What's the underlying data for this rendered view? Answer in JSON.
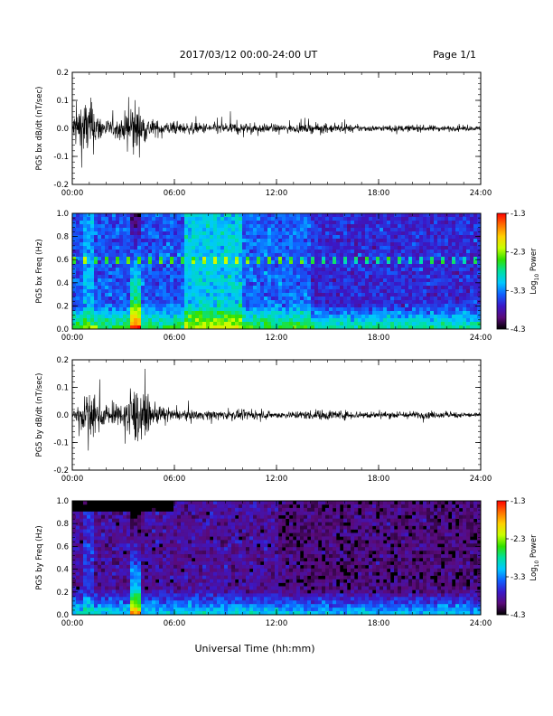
{
  "header": {
    "title": "2017/03/12  00:00-24:00 UT",
    "page": "Page 1/1"
  },
  "footer": {
    "xlabel": "Universal Time (hh:mm)"
  },
  "colorbar": {
    "label_main": "Log",
    "label_sub": "10",
    "label_end": " Power",
    "ticks": [
      "-1.3",
      "-2.3",
      "-3.3",
      "-4.3"
    ],
    "colors": [
      "#000000",
      "#5a0a7a",
      "#3a18c8",
      "#1060ff",
      "#00c8ff",
      "#00e0a0",
      "#30e000",
      "#c8ff00",
      "#ffd000",
      "#ff7000",
      "#ff0000"
    ]
  },
  "chart_data": [
    {
      "type": "line",
      "title": "",
      "ylabel": "PG5 bx dB/dt (nT/sec)",
      "xlabel": "",
      "xlim": [
        "00:00",
        "24:00"
      ],
      "ylim": [
        -0.2,
        0.2
      ],
      "xticks": [
        "00:00",
        "06:00",
        "12:00",
        "18:00",
        "24:00"
      ],
      "yticks": [
        "0.2",
        "0.1",
        "0.0",
        "-0.1",
        "-0.2"
      ],
      "series_color": "#000000",
      "envelope": {
        "x_hours": [
          0.0,
          0.5,
          1.0,
          1.5,
          2.0,
          2.5,
          3.0,
          3.4,
          3.7,
          4.0,
          4.5,
          5.0,
          6.0,
          7.0,
          8.0,
          9.0,
          10.0,
          11.0,
          12.0,
          13.0,
          14.0,
          15.0,
          16.0,
          17.0,
          18.0,
          19.0,
          20.0,
          21.0,
          22.0,
          23.0,
          24.0
        ],
        "amplitude": [
          0.08,
          0.2,
          0.2,
          0.1,
          0.06,
          0.05,
          0.07,
          0.2,
          0.2,
          0.12,
          0.07,
          0.05,
          0.04,
          0.035,
          0.035,
          0.04,
          0.035,
          0.03,
          0.025,
          0.025,
          0.03,
          0.03,
          0.025,
          0.022,
          0.018,
          0.02,
          0.022,
          0.02,
          0.018,
          0.016,
          0.015
        ]
      }
    },
    {
      "type": "heatmap",
      "title": "",
      "ylabel": "PG5 bx Freq (Hz)",
      "xlabel": "",
      "xlim": [
        "00:00",
        "24:00"
      ],
      "ylim": [
        0.0,
        1.0
      ],
      "xticks": [
        "00:00",
        "06:00",
        "12:00",
        "18:00",
        "24:00"
      ],
      "yticks": [
        "1.0",
        "0.8",
        "0.6",
        "0.4",
        "0.2",
        "0.0"
      ],
      "color_range": [
        -4.3,
        -1.3
      ],
      "color_label": "Log10 Power",
      "noise_line_hz": 0.59
    },
    {
      "type": "line",
      "title": "",
      "ylabel": "PG5 by dB/dt (nT/sec)",
      "xlabel": "",
      "xlim": [
        "00:00",
        "24:00"
      ],
      "ylim": [
        -0.2,
        0.2
      ],
      "xticks": [
        "00:00",
        "06:00",
        "12:00",
        "18:00",
        "24:00"
      ],
      "yticks": [
        "0.2",
        "0.1",
        "0.0",
        "-0.1",
        "-0.2"
      ],
      "series_color": "#000000",
      "envelope": {
        "x_hours": [
          0.0,
          0.5,
          1.0,
          1.5,
          2.0,
          2.5,
          3.0,
          3.4,
          3.7,
          4.0,
          4.5,
          5.0,
          6.0,
          7.0,
          8.0,
          9.0,
          10.0,
          11.0,
          12.0,
          13.0,
          14.0,
          15.0,
          16.0,
          17.0,
          18.0,
          19.0,
          20.0,
          21.0,
          22.0,
          23.0,
          24.0
        ],
        "amplitude": [
          0.05,
          0.09,
          0.15,
          0.1,
          0.07,
          0.06,
          0.08,
          0.2,
          0.2,
          0.15,
          0.1,
          0.06,
          0.035,
          0.03,
          0.03,
          0.03,
          0.03,
          0.025,
          0.02,
          0.025,
          0.03,
          0.035,
          0.03,
          0.025,
          0.02,
          0.025,
          0.025,
          0.022,
          0.02,
          0.018,
          0.015
        ]
      }
    },
    {
      "type": "heatmap",
      "title": "",
      "ylabel": "PG5 by Freq (Hz)",
      "xlabel": "",
      "xlim": [
        "00:00",
        "24:00"
      ],
      "ylim": [
        0.0,
        1.0
      ],
      "xticks": [
        "00:00",
        "06:00",
        "12:00",
        "18:00",
        "24:00"
      ],
      "yticks": [
        "1.0",
        "0.8",
        "0.6",
        "0.4",
        "0.2",
        "0.0"
      ],
      "color_range": [
        -4.3,
        -1.3
      ],
      "color_label": "Log10 Power"
    }
  ]
}
